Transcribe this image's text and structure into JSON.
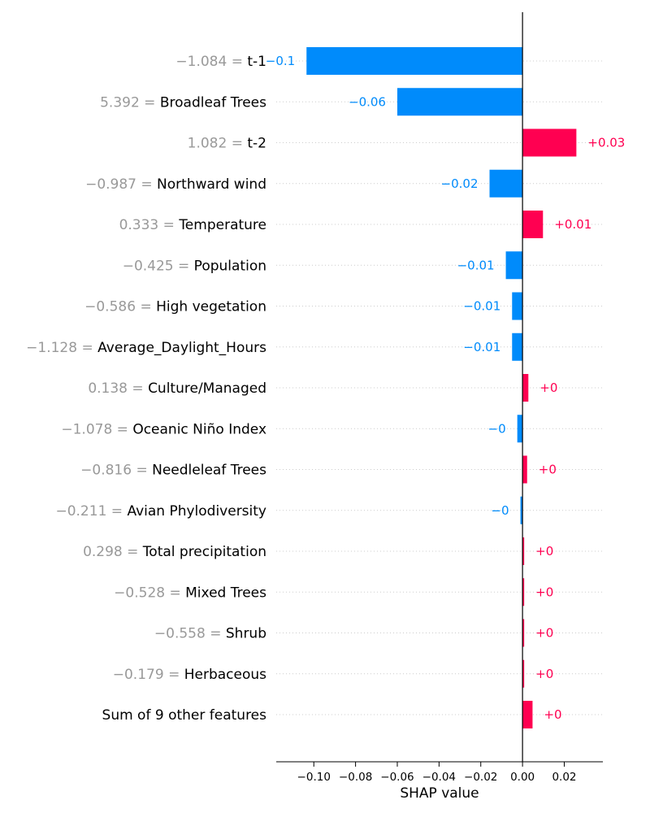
{
  "chart_data": {
    "type": "bar",
    "orientation": "horizontal",
    "xlabel": "SHAP value",
    "xlim": [
      -0.118,
      0.0385
    ],
    "xticks": [
      {
        "value": -0.1,
        "label": "−0.10"
      },
      {
        "value": -0.08,
        "label": "−0.08"
      },
      {
        "value": -0.06,
        "label": "−0.06"
      },
      {
        "value": -0.04,
        "label": "−0.04"
      },
      {
        "value": -0.02,
        "label": "−0.02"
      },
      {
        "value": 0.0,
        "label": "0.00"
      },
      {
        "value": 0.02,
        "label": "0.02"
      }
    ],
    "grid": "dotted horizontal row lines",
    "colors": {
      "positive": "#ff0051",
      "negative": "#008bfb",
      "feature_value": "#999999",
      "axis": "#000000"
    },
    "features": [
      {
        "value_text": "−1.084",
        "name": "t-1",
        "shap": -0.1035,
        "label": "−0.1"
      },
      {
        "value_text": "5.392",
        "name": "Broadleaf Trees",
        "shap": -0.06,
        "label": "−0.06"
      },
      {
        "value_text": "1.082",
        "name": "t-2",
        "shap": 0.0258,
        "label": "+0.03"
      },
      {
        "value_text": "−0.987",
        "name": "Northward wind",
        "shap": -0.0158,
        "label": "−0.02"
      },
      {
        "value_text": "0.333",
        "name": "Temperature",
        "shap": 0.0098,
        "label": "+0.01"
      },
      {
        "value_text": "−0.425",
        "name": "Population",
        "shap": -0.008,
        "label": "−0.01"
      },
      {
        "value_text": "−0.586",
        "name": "High vegetation",
        "shap": -0.005,
        "label": "−0.01"
      },
      {
        "value_text": "−1.128",
        "name": "Average_Daylight_Hours",
        "shap": -0.005,
        "label": "−0.01"
      },
      {
        "value_text": "0.138",
        "name": "Culture/Managed",
        "shap": 0.0028,
        "label": "+0"
      },
      {
        "value_text": "−1.078",
        "name": "Oceanic Niño Index",
        "shap": -0.0025,
        "label": "−0"
      },
      {
        "value_text": "−0.816",
        "name": "Needleleaf Trees",
        "shap": 0.0022,
        "label": "+0"
      },
      {
        "value_text": "−0.211",
        "name": "Avian Phylodiversity",
        "shap": -0.001,
        "label": "−0"
      },
      {
        "value_text": "0.298",
        "name": "Total precipitation",
        "shap": 0.0008,
        "label": "+0"
      },
      {
        "value_text": "−0.528",
        "name": "Mixed Trees",
        "shap": 0.0008,
        "label": "+0"
      },
      {
        "value_text": "−0.558",
        "name": "Shrub",
        "shap": 0.0008,
        "label": "+0"
      },
      {
        "value_text": "−0.179",
        "name": "Herbaceous",
        "shap": 0.0008,
        "label": "+0"
      },
      {
        "value_text": "",
        "name": "Sum of 9 other features",
        "shap": 0.0048,
        "label": "+0"
      }
    ]
  }
}
